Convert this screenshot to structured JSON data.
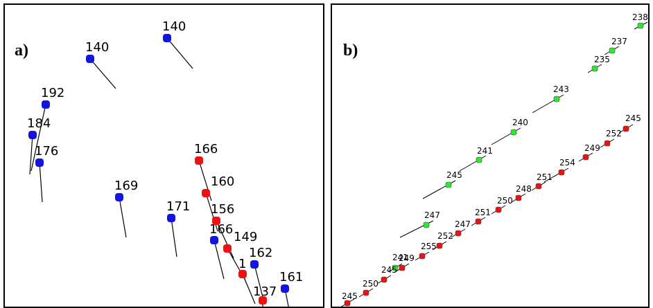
{
  "colors": {
    "blue": "#1414e0",
    "red": "#ee1111",
    "green": "#2ee82e",
    "line": "#000000"
  },
  "panel_a": {
    "letter": "a)",
    "points": [
      {
        "label": "140",
        "color": "blue"
      },
      {
        "label": "140",
        "color": "blue"
      },
      {
        "label": "192",
        "color": "blue"
      },
      {
        "label": "184",
        "color": "blue"
      },
      {
        "label": "176",
        "color": "blue"
      },
      {
        "label": "169",
        "color": "blue"
      },
      {
        "label": "171",
        "color": "blue"
      },
      {
        "label": "166",
        "color": "blue"
      },
      {
        "label": "162",
        "color": "blue"
      },
      {
        "label": "161",
        "color": "blue"
      },
      {
        "label": "166",
        "color": "red"
      },
      {
        "label": "160",
        "color": "red"
      },
      {
        "label": "156",
        "color": "red"
      },
      {
        "label": "149",
        "color": "red"
      },
      {
        "label": "1",
        "color": "red"
      },
      {
        "label": "137",
        "color": "red"
      }
    ]
  },
  "panel_b": {
    "letter": "b)",
    "points": [
      {
        "label": "238",
        "color": "green"
      },
      {
        "label": "237",
        "color": "green"
      },
      {
        "label": "235",
        "color": "green"
      },
      {
        "label": "243",
        "color": "green"
      },
      {
        "label": "240",
        "color": "green"
      },
      {
        "label": "241",
        "color": "green"
      },
      {
        "label": "245",
        "color": "green"
      },
      {
        "label": "247",
        "color": "green"
      },
      {
        "label": "241",
        "color": "green"
      },
      {
        "label": "245",
        "color": "red"
      },
      {
        "label": "252",
        "color": "red"
      },
      {
        "label": "249",
        "color": "red"
      },
      {
        "label": "254",
        "color": "red"
      },
      {
        "label": "251",
        "color": "red"
      },
      {
        "label": "248",
        "color": "red"
      },
      {
        "label": "250",
        "color": "red"
      },
      {
        "label": "251",
        "color": "red"
      },
      {
        "label": "247",
        "color": "red"
      },
      {
        "label": "252",
        "color": "red"
      },
      {
        "label": "255",
        "color": "red"
      },
      {
        "label": "249",
        "color": "red"
      },
      {
        "label": "245",
        "color": "red"
      },
      {
        "label": "250",
        "color": "red"
      },
      {
        "label": "245",
        "color": "red"
      }
    ]
  }
}
